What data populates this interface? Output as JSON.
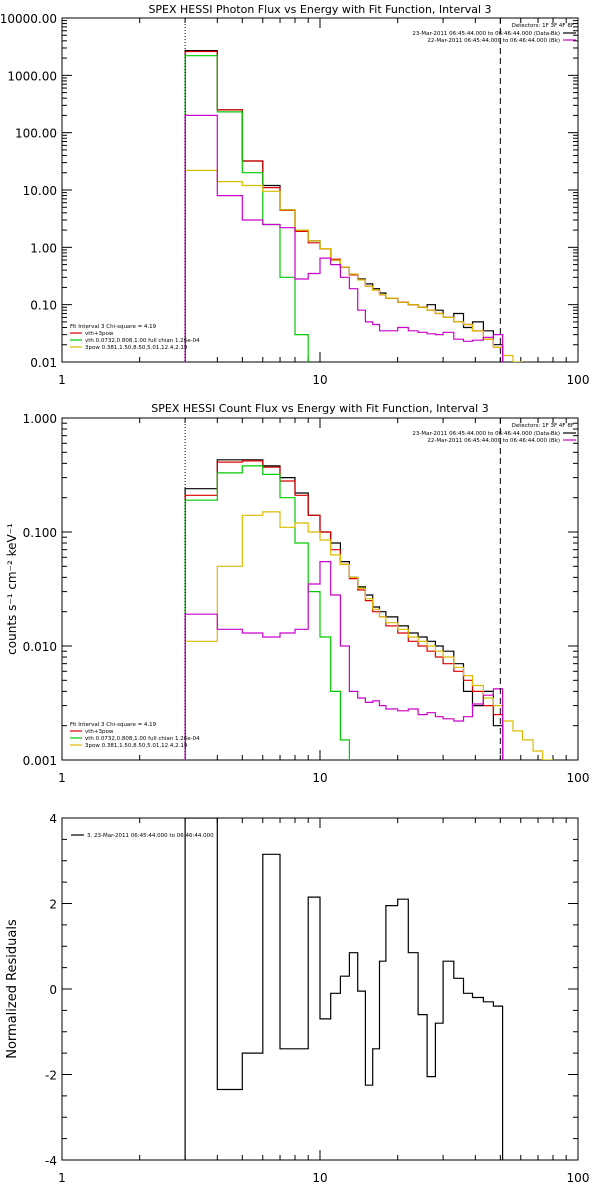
{
  "chart_data": [
    {
      "type": "line",
      "title": "SPEX HESSI Photon Flux vs Energy with Fit Function, Interval 3",
      "xscale": "log",
      "yscale": "log",
      "xlim": [
        1,
        100
      ],
      "ylim": [
        0.01,
        10000
      ],
      "x_ticks": [
        {
          "v": 1,
          "t": "1"
        },
        {
          "v": 10,
          "t": "10"
        },
        {
          "v": 100,
          "t": "100"
        }
      ],
      "y_ticks": [
        {
          "v": 0.01,
          "t": "0.01"
        },
        {
          "v": 0.1,
          "t": "0.10"
        },
        {
          "v": 1,
          "t": "1.00"
        },
        {
          "v": 10,
          "t": "10.00"
        },
        {
          "v": 100,
          "t": "100.00"
        },
        {
          "v": 1000,
          "t": "1000.00"
        },
        {
          "v": 10000,
          "t": "10000.00"
        }
      ],
      "bin_edges": [
        3.0,
        4.0,
        5.0,
        6.0,
        7.0,
        8.0,
        9.0,
        10.0,
        11.0,
        12.0,
        13.0,
        14.0,
        15.0,
        16.0,
        17.0,
        18.0,
        20.0,
        22.0,
        24.0,
        26.0,
        28.0,
        30.0,
        33.0,
        36.0,
        39.0,
        43.0,
        47.0,
        51.0,
        56.0,
        61.0
      ],
      "vlines": [
        {
          "x": 3.0,
          "style": "dotted"
        },
        {
          "x": 50.0,
          "style": "dashed"
        }
      ],
      "series": [
        {
          "color": "#000000",
          "values": [
            2700,
            250,
            32,
            12,
            4.5,
            2.0,
            1.3,
            0.95,
            0.6,
            0.45,
            0.34,
            0.28,
            0.23,
            0.19,
            0.16,
            0.13,
            0.11,
            0.1,
            0.09,
            0.1,
            0.08,
            0.06,
            0.07,
            0.04,
            0.05,
            0.035,
            0.02,
            null,
            null
          ]
        },
        {
          "color": "#dd0000",
          "values": [
            2600,
            250,
            32,
            11,
            4.4,
            1.9,
            1.2,
            0.95,
            0.62,
            0.45,
            0.33,
            0.27,
            0.21,
            0.18,
            0.15,
            0.13,
            0.11,
            0.1,
            0.09,
            0.08,
            0.07,
            0.06,
            0.05,
            0.045,
            0.035,
            0.025,
            0.018,
            null,
            null
          ]
        },
        {
          "color": "#00cc00",
          "values": [
            2200,
            230,
            20,
            2.5,
            0.3,
            0.03,
            null,
            null,
            null,
            null,
            null,
            null,
            null,
            null,
            null,
            null,
            null,
            null,
            null,
            null,
            null,
            null,
            null,
            null,
            null,
            null,
            null,
            null,
            null
          ]
        },
        {
          "color": "#ddbb00",
          "values": [
            22,
            14,
            12,
            9.5,
            4.5,
            2.0,
            1.3,
            0.95,
            0.6,
            0.45,
            0.34,
            0.27,
            0.21,
            0.18,
            0.15,
            0.13,
            0.11,
            0.1,
            0.09,
            0.08,
            0.07,
            0.06,
            0.05,
            0.045,
            0.035,
            0.025,
            0.018,
            0.013,
            0.01
          ]
        },
        {
          "color": "#cc00cc",
          "values": [
            200,
            8,
            3,
            2.5,
            2.2,
            0.28,
            0.35,
            0.65,
            0.5,
            0.3,
            0.19,
            0.08,
            0.05,
            0.045,
            0.035,
            0.035,
            0.04,
            0.035,
            0.033,
            0.031,
            0.03,
            0.033,
            0.025,
            0.023,
            0.024,
            0.027,
            0.03,
            null,
            null
          ]
        }
      ],
      "detectors_label": "Detectors: 1F 3F 4F 8F",
      "time_legend": [
        {
          "color": "#000000",
          "text": "23-Mar-2011 06:45:44.000 to 06:46:44.000 (Data-Bk)"
        },
        {
          "color": "#cc00cc",
          "text": "22-Mar-2011 06:45:44.000 to 06:46:44.000 (Bk)"
        }
      ],
      "fit_legend": {
        "header": "Fit Interval 3   Chi-square = 4.19",
        "items": [
          {
            "color": "#dd0000",
            "text": "vth+3pow"
          },
          {
            "color": "#00cc00",
            "text": "vth 0.0732,0.808,1.00  full chian 1.26e-04"
          },
          {
            "color": "#ddbb00",
            "text": "3pow 0.381,1.50,8.50,5.01,12.4,2.19"
          }
        ]
      }
    },
    {
      "type": "line",
      "title": "SPEX HESSI Count Flux vs Energy with Fit Function, Interval 3",
      "ylabel": "counts s⁻¹ cm⁻² keV⁻¹",
      "xscale": "log",
      "yscale": "log",
      "xlim": [
        1,
        100
      ],
      "ylim": [
        0.001,
        1.0
      ],
      "x_ticks": [
        {
          "v": 1,
          "t": "1"
        },
        {
          "v": 10,
          "t": "10"
        },
        {
          "v": 100,
          "t": "100"
        }
      ],
      "y_ticks": [
        {
          "v": 0.001,
          "t": "0.001"
        },
        {
          "v": 0.01,
          "t": "0.010"
        },
        {
          "v": 0.1,
          "t": "0.100"
        },
        {
          "v": 1,
          "t": "1.000"
        }
      ],
      "bin_edges": [
        3.0,
        4.0,
        5.0,
        6.0,
        7.0,
        8.0,
        9.0,
        10.0,
        11.0,
        12.0,
        13.0,
        14.0,
        15.0,
        16.0,
        17.0,
        18.0,
        20.0,
        22.0,
        24.0,
        26.0,
        28.0,
        30.0,
        33.0,
        36.0,
        39.0,
        43.0,
        47.0,
        51.0,
        56.0,
        61.0,
        67.0,
        73.0,
        80.0
      ],
      "vlines": [
        {
          "x": 3.0,
          "style": "dotted"
        },
        {
          "x": 50.0,
          "style": "dashed"
        }
      ],
      "series": [
        {
          "color": "#000000",
          "values": [
            0.24,
            0.43,
            0.43,
            0.38,
            0.3,
            0.22,
            0.14,
            0.1,
            0.08,
            0.055,
            0.04,
            0.033,
            0.028,
            0.022,
            0.02,
            0.018,
            0.015,
            0.013,
            0.012,
            0.011,
            0.01,
            0.009,
            0.007,
            0.004,
            0.003,
            0.004,
            0.002,
            null,
            null,
            null,
            null,
            null
          ]
        },
        {
          "color": "#dd0000",
          "values": [
            0.21,
            0.41,
            0.42,
            0.37,
            0.28,
            0.21,
            0.14,
            0.1,
            0.07,
            0.052,
            0.039,
            0.031,
            0.025,
            0.02,
            0.018,
            0.015,
            0.013,
            0.011,
            0.01,
            0.009,
            0.008,
            0.007,
            0.006,
            0.005,
            0.004,
            0.003,
            0.0025,
            null,
            null,
            null,
            null,
            null
          ]
        },
        {
          "color": "#00cc00",
          "values": [
            0.19,
            0.33,
            0.38,
            0.32,
            0.2,
            0.08,
            0.03,
            0.012,
            0.004,
            0.0015,
            null,
            null,
            null,
            null,
            null,
            null,
            null,
            null,
            null,
            null,
            null,
            null,
            null,
            null,
            null,
            null,
            null,
            null,
            null,
            null,
            null,
            null
          ]
        },
        {
          "color": "#ddbb00",
          "values": [
            0.011,
            0.05,
            0.14,
            0.15,
            0.11,
            0.12,
            0.1,
            0.085,
            0.063,
            0.052,
            0.04,
            0.032,
            0.026,
            0.021,
            0.018,
            0.016,
            0.014,
            0.012,
            0.011,
            0.01,
            0.009,
            0.008,
            0.0065,
            0.0055,
            0.0045,
            0.0035,
            0.003,
            0.0022,
            0.0018,
            0.0015,
            0.0012,
            0.001
          ]
        },
        {
          "color": "#cc00cc",
          "values": [
            0.019,
            0.014,
            0.013,
            0.012,
            0.013,
            0.014,
            0.035,
            0.055,
            0.028,
            0.01,
            0.004,
            0.0035,
            0.0032,
            0.0033,
            0.003,
            0.0028,
            0.0027,
            0.0028,
            0.0025,
            0.0026,
            0.0024,
            0.0023,
            0.0022,
            0.0024,
            0.0031,
            0.0037,
            0.0042,
            null,
            null,
            null,
            null,
            null
          ]
        }
      ],
      "detectors_label": "Detectors: 1F 3F 4F 8F",
      "time_legend": [
        {
          "color": "#000000",
          "text": "23-Mar-2011 06:45:44.000 to 06:46:44.000 (Data-Bk)"
        },
        {
          "color": "#cc00cc",
          "text": "22-Mar-2011 06:45:44.000 to 06:46:44.000 (Bk)"
        }
      ],
      "fit_legend": {
        "header": "Fit Interval 3   Chi-square = 4.19",
        "items": [
          {
            "color": "#dd0000",
            "text": "vth+3pow"
          },
          {
            "color": "#00cc00",
            "text": "vth 0.0732,0.808,1.00  full chian 1.26e-04"
          },
          {
            "color": "#ddbb00",
            "text": "3pow 0.381,1.50,8.50,5.01,12.4,2.19"
          }
        ]
      }
    },
    {
      "type": "line",
      "title": "",
      "ylabel": "Normalized Residuals",
      "xscale": "log",
      "yscale": "linear",
      "xlim": [
        1,
        100
      ],
      "ylim": [
        -4,
        4
      ],
      "x_ticks": [
        {
          "v": 1,
          "t": "1"
        },
        {
          "v": 10,
          "t": "10"
        },
        {
          "v": 100,
          "t": "100"
        }
      ],
      "y_ticks": [
        {
          "v": -4,
          "t": "-4"
        },
        {
          "v": -2,
          "t": "-2"
        },
        {
          "v": 0,
          "t": "0"
        },
        {
          "v": 2,
          "t": "2"
        },
        {
          "v": 4,
          "t": "4"
        }
      ],
      "bin_edges": [
        3.0,
        4.0,
        5.0,
        6.0,
        7.0,
        8.0,
        9.0,
        10.0,
        11.0,
        12.0,
        13.0,
        14.0,
        15.0,
        16.0,
        17.0,
        18.0,
        20.0,
        22.0,
        24.0,
        26.0,
        28.0,
        30.0,
        33.0,
        36.0,
        39.0,
        43.0,
        47.0,
        51.0
      ],
      "vlines": [],
      "series": [
        {
          "color": "#000000",
          "values": [
            4.0,
            -2.35,
            -1.5,
            3.15,
            -1.4,
            -1.4,
            2.15,
            -0.7,
            -0.1,
            0.3,
            0.85,
            -0.05,
            -2.25,
            -1.4,
            0.65,
            1.95,
            2.1,
            0.85,
            -0.6,
            -2.05,
            -0.8,
            0.65,
            0.25,
            -0.1,
            -0.2,
            -0.3,
            -0.4
          ]
        }
      ],
      "time_legend": [
        {
          "color": "#000000",
          "text": "3. 23-Mar-2011 06:45:44.000 to 06:46:44.000"
        }
      ]
    }
  ]
}
